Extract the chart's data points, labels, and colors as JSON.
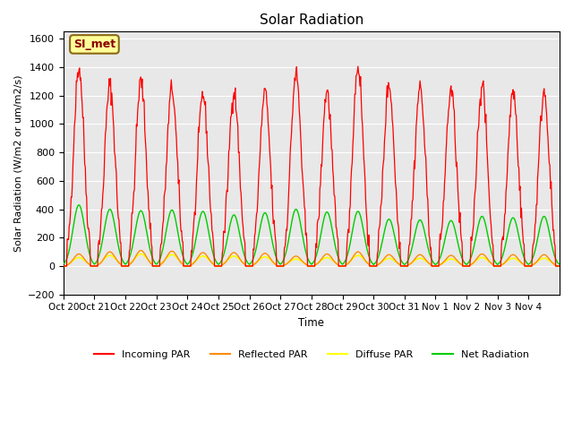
{
  "title": "Solar Radiation",
  "ylabel": "Solar Radiation (W/m2 or um/m2/s)",
  "xlabel": "Time",
  "ylim": [
    -200,
    1650
  ],
  "yticks": [
    -200,
    0,
    200,
    400,
    600,
    800,
    1000,
    1200,
    1400,
    1600
  ],
  "annotation": "SI_met",
  "x_labels": [
    "Oct 20",
    "Oct 21",
    "Oct 22",
    "Oct 23",
    "Oct 24",
    "Oct 25",
    "Oct 26",
    "Oct 27",
    "Oct 28",
    "Oct 29",
    "Oct 30",
    "Oct 31",
    "Nov 1",
    "Nov 2",
    "Nov 3",
    "Nov 4"
  ],
  "colors": {
    "incoming": "#FF0000",
    "reflected": "#FF8C00",
    "diffuse": "#FFFF00",
    "net": "#00CC00",
    "background": "#E8E8E8",
    "annotation_bg": "#FFFF99",
    "annotation_border": "#8B6914"
  },
  "legend_labels": [
    "Incoming PAR",
    "Reflected PAR",
    "Diffuse PAR",
    "Net Radiation"
  ],
  "n_days": 16,
  "pts_per_day": 48,
  "peaks_incoming": [
    1400,
    1270,
    1300,
    1250,
    1210,
    1230,
    1220,
    1350,
    1230,
    1410,
    1280,
    1260,
    1240,
    1270,
    1230,
    1230
  ],
  "peaks_reflected": [
    85,
    100,
    110,
    105,
    95,
    95,
    90,
    70,
    85,
    100,
    80,
    80,
    75,
    85,
    80,
    80
  ],
  "peaks_diffuse": [
    60,
    75,
    85,
    80,
    70,
    70,
    65,
    50,
    60,
    75,
    55,
    55,
    50,
    60,
    55,
    55
  ],
  "peaks_net": [
    430,
    400,
    390,
    395,
    385,
    360,
    375,
    400,
    380,
    385,
    330,
    325,
    320,
    350,
    340,
    350
  ],
  "night_net": -60
}
